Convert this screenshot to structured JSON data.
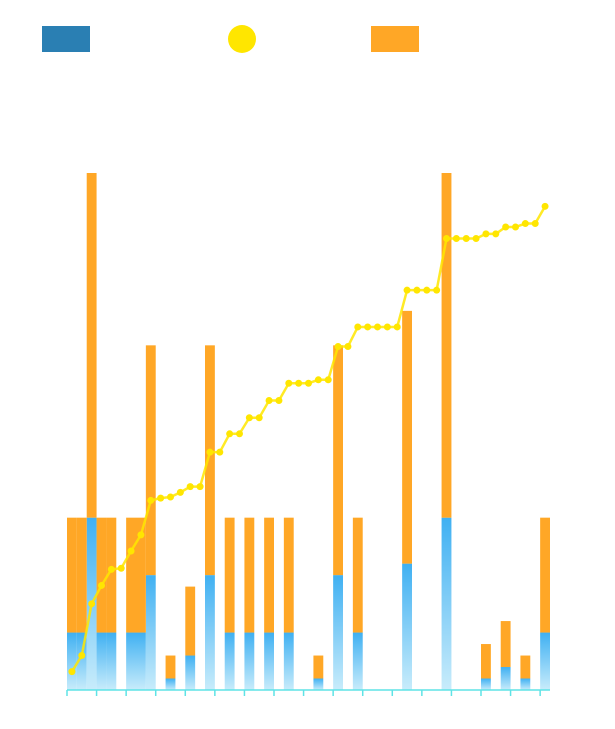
{
  "chart_data": {
    "type": "bar-line",
    "series": [
      {
        "type": "bar",
        "color": "#3fb0f2",
        "legend_color": "#2a7fb3",
        "values": [
          5,
          5,
          15,
          5,
          5,
          null,
          5,
          5,
          10,
          null,
          1,
          null,
          3,
          null,
          10,
          null,
          5,
          null,
          5,
          null,
          5,
          null,
          5,
          null,
          null,
          1,
          null,
          10,
          null,
          5,
          null,
          null,
          null,
          null,
          11,
          null,
          null,
          null,
          15,
          null,
          null,
          null,
          1,
          null,
          2,
          null,
          1,
          null,
          5
        ]
      },
      {
        "type": "line",
        "color": "#ffe600",
        "values": [
          1.6,
          3.0,
          7.5,
          9.1,
          10.5,
          10.6,
          12.1,
          13.5,
          16.5,
          16.7,
          16.8,
          17.2,
          17.7,
          17.7,
          20.7,
          20.7,
          22.3,
          22.3,
          23.7,
          23.7,
          25.2,
          25.2,
          26.7,
          26.7,
          26.7,
          27.0,
          27.0,
          29.9,
          29.9,
          31.6,
          31.6,
          31.6,
          31.6,
          31.6,
          34.8,
          34.8,
          34.8,
          34.8,
          39.3,
          39.3,
          39.3,
          39.3,
          39.7,
          39.7,
          40.3,
          40.3,
          40.6,
          40.6,
          42.1
        ]
      },
      {
        "type": "bar",
        "color": "#ffa726",
        "legend_color": "#ffa726",
        "values": [
          10,
          10,
          30,
          10,
          10,
          null,
          10,
          10,
          20,
          null,
          2,
          null,
          6,
          null,
          20,
          null,
          10,
          null,
          10,
          null,
          10,
          null,
          10,
          null,
          null,
          2,
          null,
          20,
          null,
          10,
          null,
          null,
          null,
          null,
          22,
          null,
          null,
          null,
          30,
          null,
          null,
          null,
          3,
          null,
          4,
          null,
          2,
          null,
          10
        ]
      }
    ],
    "stacked": true,
    "ylim": [
      0,
      45
    ]
  }
}
